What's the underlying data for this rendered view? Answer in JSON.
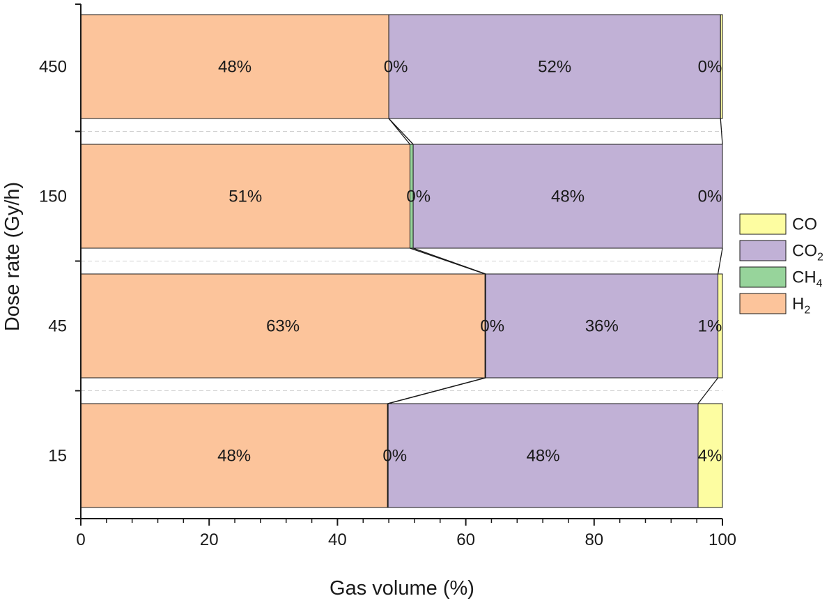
{
  "chart_data": {
    "type": "bar",
    "orientation": "horizontal",
    "stacked": true,
    "percent_stacked": true,
    "title": "",
    "xlabel": "Gas volume (%)",
    "ylabel": "Dose rate (Gy/h)",
    "xlim": [
      0,
      100
    ],
    "x_ticks": [
      "0",
      "20",
      "40",
      "60",
      "80",
      "100"
    ],
    "categories": [
      "450",
      "150",
      "45",
      "15"
    ],
    "series": [
      {
        "name": "H",
        "subscript": "2",
        "color": "#fcc49b",
        "values": [
          48,
          51.3,
          63,
          47.8
        ],
        "labels": [
          "48%",
          "51%",
          "63%",
          "48%"
        ]
      },
      {
        "name": "CH",
        "subscript": "4",
        "color": "#97d49b",
        "values": [
          0.0,
          0.5,
          0.1,
          0.1
        ],
        "labels": [
          "0%",
          "0%",
          "0%",
          "0%"
        ]
      },
      {
        "name": "CO",
        "subscript": "2",
        "color": "#c1b1d6",
        "values": [
          51.7,
          48.2,
          36.2,
          48.3
        ],
        "labels": [
          "52%",
          "48%",
          "36%",
          "48%"
        ]
      },
      {
        "name": "CO",
        "subscript": "",
        "color": "#fdfda1",
        "values": [
          0.3,
          0.0,
          0.7,
          3.8
        ],
        "labels": [
          "0%",
          "0%",
          "1%",
          "4%"
        ]
      }
    ],
    "legend": {
      "placement": "right",
      "order": [
        3,
        2,
        1,
        0
      ]
    },
    "connector_lines": true,
    "grid": false
  }
}
